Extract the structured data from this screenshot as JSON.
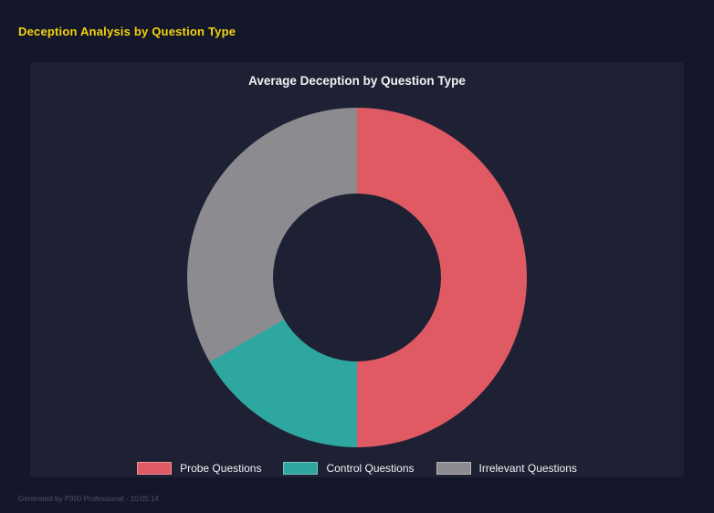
{
  "page": {
    "title": "Deception Analysis by Question Type",
    "footer": "Generated by P300 Professional - 10:05:14"
  },
  "theme": {
    "background": "#14162a",
    "panel": "#1e2134",
    "title_yellow": "#f5d30d",
    "text_light": "#f2f2f4",
    "footer_gray": "#4d5163"
  },
  "chart_data": {
    "type": "pie",
    "subtype": "donut",
    "title": "Average Deception by Question Type",
    "categories": [
      "Probe Questions",
      "Control Questions",
      "Irrelevant Questions"
    ],
    "values": [
      50,
      16.7,
      33.3
    ],
    "unit": "percent",
    "colors": [
      "#e05a64",
      "#2fa7a1",
      "#8b8b90"
    ],
    "start_angle_deg": 0,
    "direction": "clockwise",
    "hole_ratio": 0.49,
    "legend_position": "bottom",
    "grid": false
  }
}
